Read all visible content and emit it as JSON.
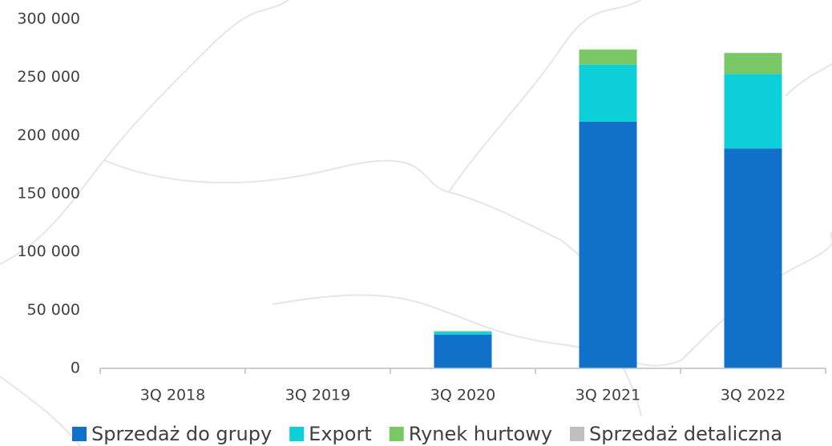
{
  "chart_data": {
    "type": "stacked_bar",
    "categories": [
      "3Q 2018",
      "3Q 2019",
      "3Q 2020",
      "3Q 2021",
      "3Q 2022"
    ],
    "series": [
      {
        "name": "Sprzedaż do grupy",
        "color": "#1170c8",
        "values": [
          0,
          0,
          29000,
          212000,
          189000
        ]
      },
      {
        "name": "Export",
        "color": "#0ccfd8",
        "values": [
          0,
          0,
          2500,
          49000,
          64000
        ]
      },
      {
        "name": "Rynek hurtowy",
        "color": "#79c865",
        "values": [
          0,
          0,
          500,
          13000,
          18000
        ]
      },
      {
        "name": "Sprzedaż detaliczna",
        "color": "#bfbfbf",
        "values": [
          0,
          0,
          0,
          0,
          0
        ]
      }
    ],
    "ylim": [
      0,
      300000
    ],
    "yticks": [
      0,
      {
        "value": 50000,
        "label": "50 000"
      },
      {
        "value": 100000,
        "label": "100 000"
      },
      {
        "value": 150000,
        "label": "150 000"
      },
      {
        "value": 200000,
        "label": "200 000"
      },
      {
        "value": 250000,
        "label": "250 000"
      },
      {
        "value": 300000,
        "label": "300 000"
      }
    ],
    "legend": "bottom"
  }
}
